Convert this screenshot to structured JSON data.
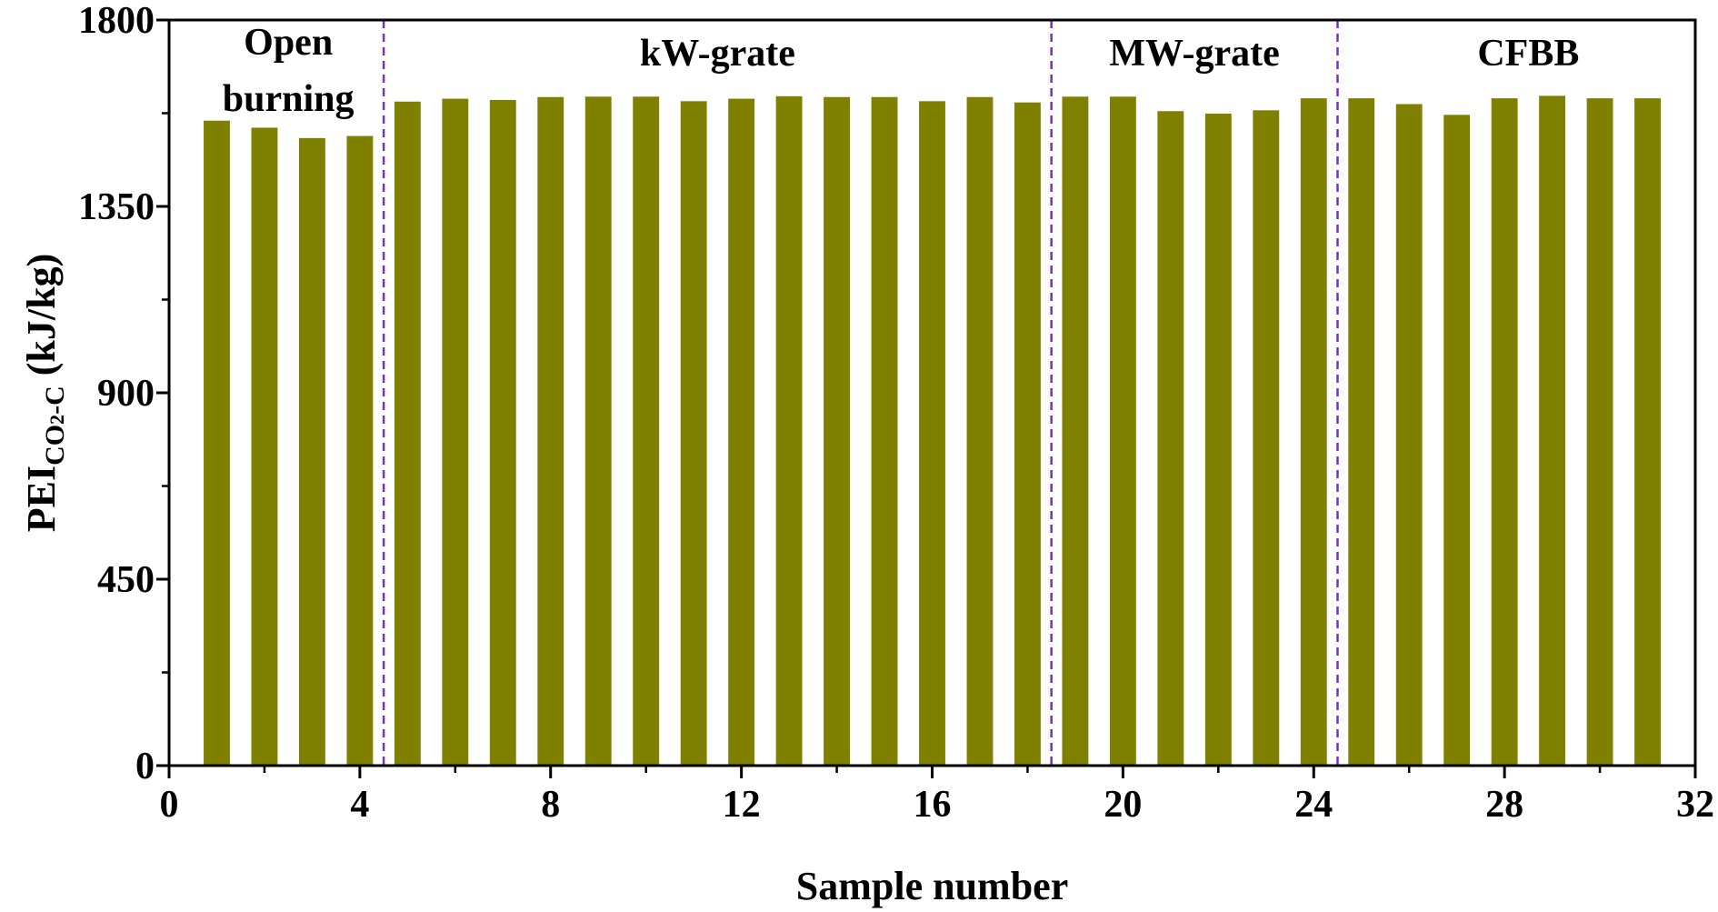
{
  "chart_data": {
    "type": "bar",
    "title": "",
    "xlabel": "Sample number",
    "ylabel": {
      "prefix": "PEI",
      "subscript_a": "CO",
      "subscript_b": "2",
      "subscript_c": "-C",
      "unit": " (kJ/kg)"
    },
    "xlim": [
      0,
      32
    ],
    "ylim": [
      0,
      1800
    ],
    "xticks": [
      "0",
      "4",
      "8",
      "12",
      "16",
      "20",
      "24",
      "28",
      "32"
    ],
    "yticks": [
      "0",
      "450",
      "900",
      "1350",
      "1800"
    ],
    "grid": false,
    "bar_color": "#808000",
    "divider_color": "#7b2fbf",
    "x": [
      1,
      2,
      3,
      4,
      5,
      6,
      7,
      8,
      9,
      10,
      11,
      12,
      13,
      14,
      15,
      16,
      17,
      18,
      19,
      20,
      21,
      22,
      23,
      24,
      25,
      26,
      27,
      28,
      29,
      30,
      31
    ],
    "values": [
      1557,
      1540,
      1515,
      1520,
      1603,
      1610,
      1607,
      1614,
      1615,
      1615,
      1604,
      1610,
      1616,
      1614,
      1614,
      1604,
      1614,
      1601,
      1615,
      1615,
      1580,
      1574,
      1582,
      1611,
      1611,
      1597,
      1571,
      1611,
      1617,
      1611,
      1611
    ],
    "dividers": [
      4.5,
      18.5,
      24.5
    ],
    "regions": [
      {
        "lines": [
          "Open",
          "burning"
        ],
        "center": 2.5
      },
      {
        "lines": [
          "kW-grate"
        ],
        "center": 11.5
      },
      {
        "lines": [
          "MW-grate"
        ],
        "center": 21.5
      },
      {
        "lines": [
          "CFBB"
        ],
        "center": 28.5
      }
    ]
  }
}
